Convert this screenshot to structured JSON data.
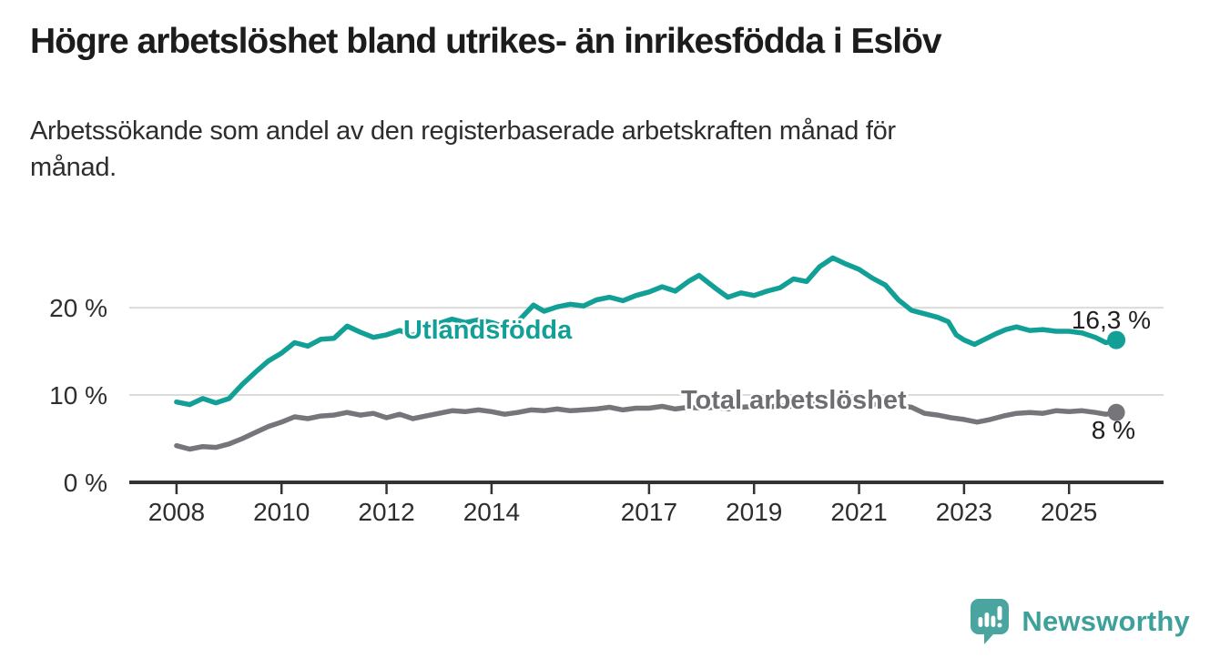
{
  "header": {
    "title": "Högre arbetslöshet bland utrikes- än inrikesfödda i Eslöv",
    "subtitle": "Arbetssökande som andel av den registerbaserade arbetskraften månad för\nmånad."
  },
  "footer": {
    "brand": "Newsworthy",
    "logo_icon": "bar-chart-speech-bubble-icon",
    "brand_color": "#3EA09A",
    "logo_color": "#4AA5A0"
  },
  "colors": {
    "foreign_born_line": "#12A096",
    "total_line": "#76767A",
    "total_label": "#6E6E72",
    "value_label": "#1F1F1F",
    "axis": "#333333",
    "tick_text": "#2E2E2E",
    "gridline": "#DBDBDB",
    "background": "#FFFFFF"
  },
  "chart_data": {
    "type": "line",
    "title": "Högre arbetslöshet bland utrikes- än inrikesfödda i Eslöv",
    "subtitle": "Arbetssökande som andel av den registerbaserade arbetskraften månad för månad.",
    "xlabel": "",
    "ylabel": "",
    "xlim": [
      2007.1,
      2026.8
    ],
    "ylim": [
      0,
      27.1
    ],
    "grid": "horizontal",
    "legend_position": "inline-labels",
    "x_ticks": [
      {
        "v": 2008,
        "label": "2008"
      },
      {
        "v": 2010,
        "label": "2010"
      },
      {
        "v": 2012,
        "label": "2012"
      },
      {
        "v": 2014,
        "label": "2014"
      },
      {
        "v": 2017,
        "label": "2017"
      },
      {
        "v": 2019,
        "label": "2019"
      },
      {
        "v": 2021,
        "label": "2021"
      },
      {
        "v": 2023,
        "label": "2023"
      },
      {
        "v": 2025,
        "label": "2025"
      }
    ],
    "y_ticks": [
      {
        "v": 0,
        "label": "0 %"
      },
      {
        "v": 10,
        "label": "10 %"
      },
      {
        "v": 20,
        "label": "20 %"
      }
    ],
    "series": [
      {
        "id": "utlandsfodda",
        "name": "Utlandsfödda",
        "color": "#12A096",
        "end_label": "16,3 %",
        "end_value": 16.3,
        "points": [
          [
            2008.0,
            9.2
          ],
          [
            2008.25,
            8.9
          ],
          [
            2008.5,
            9.6
          ],
          [
            2008.75,
            9.1
          ],
          [
            2009.0,
            9.6
          ],
          [
            2009.25,
            11.2
          ],
          [
            2009.5,
            12.6
          ],
          [
            2009.75,
            13.9
          ],
          [
            2010.0,
            14.8
          ],
          [
            2010.25,
            16.0
          ],
          [
            2010.5,
            15.6
          ],
          [
            2010.75,
            16.4
          ],
          [
            2011.0,
            16.5
          ],
          [
            2011.25,
            17.9
          ],
          [
            2011.5,
            17.2
          ],
          [
            2011.75,
            16.6
          ],
          [
            2012.0,
            16.9
          ],
          [
            2012.25,
            17.4
          ],
          [
            2012.5,
            16.8
          ],
          [
            2012.75,
            17.6
          ],
          [
            2013.0,
            18.2
          ],
          [
            2013.25,
            18.7
          ],
          [
            2013.5,
            18.3
          ],
          [
            2013.75,
            18.6
          ],
          [
            2014.0,
            18.3
          ],
          [
            2014.25,
            17.8
          ],
          [
            2014.5,
            18.4
          ],
          [
            2014.8,
            20.3
          ],
          [
            2015.0,
            19.6
          ],
          [
            2015.25,
            20.1
          ],
          [
            2015.5,
            20.4
          ],
          [
            2015.75,
            20.2
          ],
          [
            2016.0,
            20.9
          ],
          [
            2016.25,
            21.2
          ],
          [
            2016.5,
            20.8
          ],
          [
            2016.75,
            21.4
          ],
          [
            2017.0,
            21.8
          ],
          [
            2017.25,
            22.4
          ],
          [
            2017.5,
            21.9
          ],
          [
            2017.75,
            23.0
          ],
          [
            2017.95,
            23.7
          ],
          [
            2018.25,
            22.3
          ],
          [
            2018.5,
            21.2
          ],
          [
            2018.75,
            21.7
          ],
          [
            2019.0,
            21.4
          ],
          [
            2019.25,
            21.9
          ],
          [
            2019.5,
            22.3
          ],
          [
            2019.75,
            23.3
          ],
          [
            2020.0,
            23.0
          ],
          [
            2020.25,
            24.7
          ],
          [
            2020.5,
            25.7
          ],
          [
            2020.75,
            25.0
          ],
          [
            2021.0,
            24.4
          ],
          [
            2021.25,
            23.4
          ],
          [
            2021.5,
            22.6
          ],
          [
            2021.75,
            20.9
          ],
          [
            2022.0,
            19.7
          ],
          [
            2022.25,
            19.3
          ],
          [
            2022.5,
            18.9
          ],
          [
            2022.7,
            18.4
          ],
          [
            2022.85,
            16.9
          ],
          [
            2023.0,
            16.3
          ],
          [
            2023.2,
            15.8
          ],
          [
            2023.4,
            16.4
          ],
          [
            2023.6,
            17.0
          ],
          [
            2023.8,
            17.5
          ],
          [
            2024.0,
            17.8
          ],
          [
            2024.25,
            17.4
          ],
          [
            2024.5,
            17.5
          ],
          [
            2024.75,
            17.3
          ],
          [
            2025.0,
            17.3
          ],
          [
            2025.25,
            17.1
          ],
          [
            2025.5,
            16.6
          ],
          [
            2025.7,
            16.0
          ],
          [
            2025.9,
            16.3
          ]
        ]
      },
      {
        "id": "total",
        "name": "Total arbetslöshet",
        "color": "#76767A",
        "end_label": "8 %",
        "end_value": 8,
        "points": [
          [
            2008.0,
            4.2
          ],
          [
            2008.25,
            3.8
          ],
          [
            2008.5,
            4.1
          ],
          [
            2008.75,
            4.0
          ],
          [
            2009.0,
            4.4
          ],
          [
            2009.25,
            5.0
          ],
          [
            2009.5,
            5.7
          ],
          [
            2009.75,
            6.4
          ],
          [
            2010.0,
            6.9
          ],
          [
            2010.25,
            7.5
          ],
          [
            2010.5,
            7.3
          ],
          [
            2010.75,
            7.6
          ],
          [
            2011.0,
            7.7
          ],
          [
            2011.25,
            8.0
          ],
          [
            2011.5,
            7.7
          ],
          [
            2011.75,
            7.9
          ],
          [
            2012.0,
            7.4
          ],
          [
            2012.25,
            7.8
          ],
          [
            2012.5,
            7.3
          ],
          [
            2012.75,
            7.6
          ],
          [
            2013.0,
            7.9
          ],
          [
            2013.25,
            8.2
          ],
          [
            2013.5,
            8.1
          ],
          [
            2013.75,
            8.3
          ],
          [
            2014.0,
            8.1
          ],
          [
            2014.25,
            7.8
          ],
          [
            2014.5,
            8.0
          ],
          [
            2014.75,
            8.3
          ],
          [
            2015.0,
            8.2
          ],
          [
            2015.25,
            8.4
          ],
          [
            2015.5,
            8.2
          ],
          [
            2015.75,
            8.3
          ],
          [
            2016.0,
            8.4
          ],
          [
            2016.25,
            8.6
          ],
          [
            2016.5,
            8.3
          ],
          [
            2016.75,
            8.5
          ],
          [
            2017.0,
            8.5
          ],
          [
            2017.25,
            8.7
          ],
          [
            2017.5,
            8.4
          ],
          [
            2017.75,
            8.6
          ],
          [
            2018.0,
            8.5
          ],
          [
            2018.25,
            8.6
          ],
          [
            2018.5,
            8.4
          ],
          [
            2018.75,
            8.6
          ],
          [
            2019.0,
            8.7
          ],
          [
            2019.25,
            8.6
          ],
          [
            2019.5,
            8.8
          ],
          [
            2019.75,
            8.7
          ],
          [
            2020.0,
            8.9
          ],
          [
            2020.25,
            9.0
          ],
          [
            2020.5,
            9.2
          ],
          [
            2020.75,
            9.0
          ],
          [
            2021.0,
            9.1
          ],
          [
            2021.25,
            8.9
          ],
          [
            2021.5,
            9.0
          ],
          [
            2021.75,
            8.8
          ],
          [
            2022.0,
            8.6
          ],
          [
            2022.25,
            7.9
          ],
          [
            2022.5,
            7.7
          ],
          [
            2022.75,
            7.4
          ],
          [
            2023.0,
            7.2
          ],
          [
            2023.25,
            6.9
          ],
          [
            2023.5,
            7.2
          ],
          [
            2023.75,
            7.6
          ],
          [
            2024.0,
            7.9
          ],
          [
            2024.25,
            8.0
          ],
          [
            2024.5,
            7.9
          ],
          [
            2024.75,
            8.2
          ],
          [
            2025.0,
            8.1
          ],
          [
            2025.25,
            8.2
          ],
          [
            2025.5,
            8.0
          ],
          [
            2025.7,
            7.8
          ],
          [
            2025.9,
            8.0
          ]
        ]
      }
    ]
  }
}
